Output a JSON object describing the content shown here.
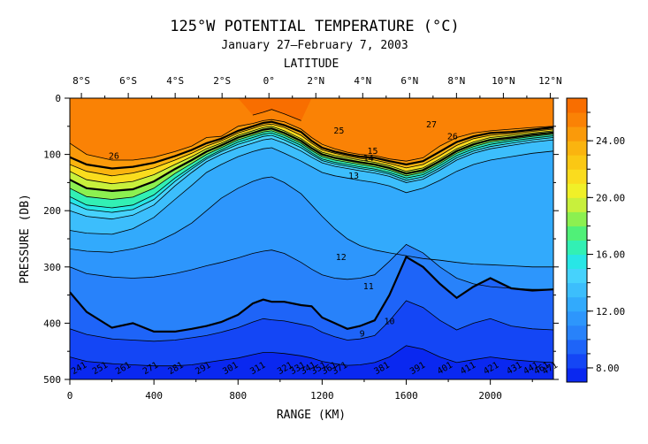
{
  "chart_data": {
    "type": "contour",
    "title": "125°W POTENTIAL TEMPERATURE (°C)",
    "subtitle": "January 27—February 7, 2003",
    "top_axis_label": "LATITUDE",
    "xlabel": "RANGE (KM)",
    "ylabel": "PRESSURE (DB)",
    "xlim": [
      0,
      2300
    ],
    "ylim": [
      500,
      0
    ],
    "x_ticks": [
      0,
      400,
      800,
      1200,
      1600,
      2000
    ],
    "y_ticks": [
      0,
      100,
      200,
      300,
      400,
      500
    ],
    "top_ticks": [
      {
        "label": "8°S",
        "km": 55
      },
      {
        "label": "6°S",
        "km": 278
      },
      {
        "label": "4°S",
        "km": 501
      },
      {
        "label": "2°S",
        "km": 724
      },
      {
        "label": "0°",
        "km": 947
      },
      {
        "label": "2°N",
        "km": 1170
      },
      {
        "label": "4°N",
        "km": 1393
      },
      {
        "label": "6°N",
        "km": 1616
      },
      {
        "label": "8°N",
        "km": 1839
      },
      {
        "label": "10°N",
        "km": 2062
      },
      {
        "label": "12°N",
        "km": 2285
      }
    ],
    "colorbar": {
      "range": [
        7,
        27
      ],
      "tick_labels": [
        "8.00",
        "12.00",
        "16.00",
        "20.00",
        "24.00"
      ],
      "tick_values": [
        8,
        12,
        16,
        20,
        24
      ],
      "colors": [
        "#0a28f0",
        "#1446f5",
        "#1e64f8",
        "#2882fa",
        "#2d96fc",
        "#32aafc",
        "#3cbefc",
        "#46d2fc",
        "#28e6e6",
        "#32f0b4",
        "#50f078",
        "#8cf050",
        "#c8f03c",
        "#f0f028",
        "#fadc1e",
        "#fac814",
        "#fab40f",
        "#fa9a0a",
        "#fa8205",
        "#f86e00"
      ]
    },
    "contour_labels": [
      {
        "text": "26",
        "x": 210,
        "p": 108
      },
      {
        "text": "27",
        "x": 1720,
        "p": 52
      },
      {
        "text": "26",
        "x": 1820,
        "p": 73
      },
      {
        "text": "25",
        "x": 1280,
        "p": 63
      },
      {
        "text": "15",
        "x": 1440,
        "p": 99
      },
      {
        "text": "14",
        "x": 1420,
        "p": 112
      },
      {
        "text": "13",
        "x": 1350,
        "p": 143
      },
      {
        "text": "12",
        "x": 1290,
        "p": 288
      },
      {
        "text": "11",
        "x": 1420,
        "p": 340
      },
      {
        "text": "10",
        "x": 1520,
        "p": 402
      },
      {
        "text": "9",
        "x": 1390,
        "p": 424
      }
    ],
    "station_labels": [
      {
        "text": "241",
        "x": 50
      },
      {
        "text": "251",
        "x": 150
      },
      {
        "text": "261",
        "x": 260
      },
      {
        "text": "271",
        "x": 390
      },
      {
        "text": "281",
        "x": 510
      },
      {
        "text": "291",
        "x": 640
      },
      {
        "text": "301",
        "x": 770
      },
      {
        "text": "311",
        "x": 900
      },
      {
        "text": "321",
        "x": 1030
      },
      {
        "text": "331",
        "x": 1090
      },
      {
        "text": "341",
        "x": 1140
      },
      {
        "text": "351",
        "x": 1190
      },
      {
        "text": "361",
        "x": 1240
      },
      {
        "text": "371",
        "x": 1290
      },
      {
        "text": "381",
        "x": 1490
      },
      {
        "text": "391",
        "x": 1660
      },
      {
        "text": "401",
        "x": 1790
      },
      {
        "text": "411",
        "x": 1900
      },
      {
        "text": "421",
        "x": 2010
      },
      {
        "text": "431",
        "x": 2120
      },
      {
        "text": "441",
        "x": 2200
      },
      {
        "text": "461",
        "x": 2250
      },
      {
        "text": "471",
        "x": 2290
      }
    ],
    "isotherm_depths_x": [
      0,
      80,
      200,
      300,
      400,
      500,
      580,
      650,
      720,
      800,
      870,
      920,
      960,
      1020,
      1100,
      1150,
      1200,
      1260,
      1320,
      1380,
      1450,
      1520,
      1600,
      1680,
      1760,
      1840,
      1920,
      2000,
      2100,
      2200,
      2300
    ],
    "isotherms": [
      {
        "t": 27,
        "p": [
          null,
          null,
          null,
          null,
          null,
          null,
          null,
          null,
          null,
          null,
          30,
          25,
          20,
          28,
          40,
          null,
          null,
          null,
          null,
          null,
          null,
          null,
          null,
          null,
          null,
          null,
          null,
          null,
          null,
          null,
          null
        ]
      },
      {
        "t": 26,
        "p": [
          80,
          100,
          110,
          110,
          105,
          95,
          85,
          70,
          68,
          50,
          45,
          40,
          38,
          42,
          55,
          70,
          82,
          90,
          96,
          100,
          102,
          108,
          112,
          106,
          85,
          70,
          62,
          58,
          55,
          52,
          50
        ]
      },
      {
        "t": 25,
        "p": [
          105,
          118,
          125,
          122,
          115,
          103,
          92,
          80,
          72,
          58,
          50,
          44,
          42,
          48,
          60,
          76,
          88,
          95,
          100,
          104,
          106,
          112,
          118,
          112,
          95,
          78,
          68,
          62,
          60,
          56,
          52
        ]
      },
      {
        "t": 24,
        "p": [
          118,
          130,
          138,
          133,
          124,
          110,
          98,
          85,
          76,
          62,
          54,
          48,
          46,
          52,
          66,
          80,
          92,
          98,
          103,
          107,
          110,
          116,
          124,
          118,
          102,
          84,
          72,
          66,
          63,
          59,
          55
        ]
      },
      {
        "t": 22,
        "p": [
          130,
          145,
          152,
          148,
          136,
          118,
          104,
          90,
          80,
          66,
          58,
          52,
          50,
          58,
          72,
          85,
          96,
          102,
          106,
          110,
          114,
          120,
          130,
          124,
          108,
          90,
          78,
          70,
          66,
          62,
          58
        ]
      },
      {
        "t": 20,
        "p": [
          145,
          160,
          165,
          162,
          148,
          126,
          110,
          95,
          84,
          70,
          62,
          56,
          54,
          62,
          76,
          89,
          100,
          106,
          110,
          114,
          118,
          124,
          134,
          128,
          112,
          94,
          82,
          74,
          70,
          65,
          61
        ]
      },
      {
        "t": 18,
        "p": [
          160,
          175,
          180,
          176,
          160,
          134,
          116,
          100,
          88,
          74,
          66,
          60,
          58,
          66,
          80,
          93,
          104,
          110,
          114,
          118,
          122,
          128,
          138,
          132,
          116,
          98,
          86,
          78,
          73,
          68,
          64
        ]
      },
      {
        "t": 16,
        "p": [
          175,
          190,
          195,
          190,
          172,
          142,
          122,
          105,
          92,
          78,
          70,
          64,
          62,
          70,
          84,
          97,
          108,
          114,
          118,
          122,
          126,
          132,
          142,
          136,
          120,
          102,
          90,
          82,
          76,
          71,
          67
        ]
      },
      {
        "t": 15,
        "p": [
          185,
          198,
          203,
          198,
          180,
          148,
          126,
          108,
          95,
          82,
          74,
          68,
          66,
          74,
          88,
          100,
          111,
          117,
          121,
          125,
          129,
          135,
          146,
          140,
          124,
          106,
          94,
          86,
          80,
          74,
          70
        ]
      },
      {
        "t": 14,
        "p": [
          200,
          210,
          215,
          208,
          190,
          156,
          132,
          113,
          100,
          88,
          80,
          74,
          72,
          80,
          94,
          105,
          115,
          121,
          125,
          129,
          133,
          139,
          150,
          144,
          128,
          110,
          98,
          90,
          84,
          78,
          74
        ]
      },
      {
        "t": 13,
        "p": [
          235,
          240,
          242,
          232,
          212,
          180,
          155,
          132,
          118,
          104,
          95,
          90,
          88,
          98,
          112,
          122,
          132,
          138,
          142,
          146,
          150,
          156,
          168,
          160,
          146,
          130,
          118,
          110,
          104,
          98,
          94
        ]
      },
      {
        "t": 12,
        "p": [
          268,
          272,
          274,
          268,
          258,
          240,
          222,
          200,
          178,
          160,
          148,
          142,
          140,
          150,
          170,
          190,
          210,
          232,
          250,
          262,
          270,
          275,
          280,
          285,
          288,
          292,
          295,
          296,
          298,
          300,
          300
        ]
      },
      {
        "t": 11,
        "p": [
          300,
          312,
          318,
          320,
          318,
          312,
          305,
          298,
          292,
          284,
          276,
          272,
          270,
          276,
          292,
          304,
          314,
          320,
          322,
          320,
          314,
          290,
          260,
          275,
          300,
          320,
          330,
          335,
          338,
          340,
          340
        ]
      },
      {
        "t": 10,
        "p": [
          345,
          380,
          408,
          400,
          415,
          415,
          410,
          405,
          398,
          385,
          365,
          358,
          362,
          362,
          368,
          370,
          390,
          400,
          410,
          405,
          395,
          350,
          282,
          300,
          330,
          355,
          335,
          320,
          338,
          342,
          340
        ]
      },
      {
        "t": 9,
        "p": [
          410,
          420,
          428,
          430,
          432,
          430,
          426,
          422,
          416,
          408,
          398,
          392,
          394,
          396,
          402,
          406,
          416,
          424,
          430,
          428,
          422,
          396,
          360,
          372,
          395,
          412,
          400,
          392,
          405,
          410,
          412
        ]
      },
      {
        "t": 8,
        "p": [
          460,
          468,
          472,
          474,
          476,
          476,
          474,
          470,
          466,
          462,
          456,
          452,
          452,
          454,
          458,
          462,
          468,
          472,
          475,
          474,
          470,
          460,
          440,
          446,
          460,
          470,
          465,
          460,
          465,
          468,
          470
        ]
      }
    ],
    "bands": [
      {
        "t": 27.5,
        "color": "#f86e00"
      },
      {
        "t": 26.5,
        "color": "#fa8205"
      },
      {
        "t": 25.5,
        "color": "#fa9a0a"
      },
      {
        "t": 24.5,
        "color": "#fab40f"
      },
      {
        "t": 23,
        "color": "#fadc1e"
      },
      {
        "t": 21,
        "color": "#c8f03c"
      },
      {
        "t": 19,
        "color": "#8cf050"
      },
      {
        "t": 17,
        "color": "#32f0b4"
      },
      {
        "t": 15.5,
        "color": "#28e6e6"
      },
      {
        "t": 14.5,
        "color": "#46d2fc"
      },
      {
        "t": 13.5,
        "color": "#3cbefc"
      },
      {
        "t": 12.5,
        "color": "#32aafc"
      },
      {
        "t": 11.5,
        "color": "#2d96fc"
      },
      {
        "t": 10.5,
        "color": "#2882fa"
      },
      {
        "t": 9.5,
        "color": "#1e64f8"
      },
      {
        "t": 8.5,
        "color": "#1446f5"
      },
      {
        "t": 7.5,
        "color": "#0a28f0"
      }
    ]
  }
}
